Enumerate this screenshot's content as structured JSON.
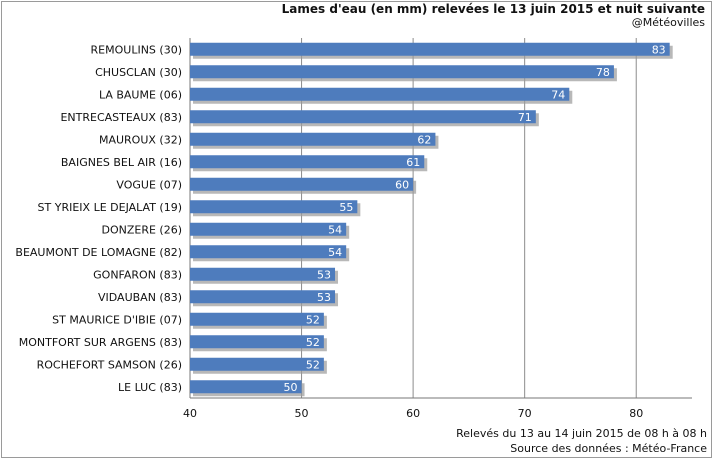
{
  "title": "Lames d'eau (en mm) relevées le 13 juin 2015 et nuit suivante",
  "subtitle": "@Météovilles",
  "footer": {
    "line1": "Relevés du 13 au 14 juin 2015 de 08 h à 08 h",
    "line2": "Source des données : Météo-France"
  },
  "colors": {
    "bar": "#4e7cbd",
    "bar_shadow": "#9a9a9a",
    "grid": "#8c8c8c"
  },
  "chart_data": {
    "type": "bar",
    "orientation": "horizontal",
    "title": "Lames d'eau (en mm) relevées le 13 juin 2015 et nuit suivante",
    "xlabel": "",
    "ylabel": "",
    "xlim": [
      40,
      85
    ],
    "xticks": [
      40,
      50,
      60,
      70,
      80
    ],
    "grid": true,
    "categories": [
      "REMOULINS (30)",
      "CHUSCLAN (30)",
      "LA BAUME (06)",
      "ENTRECASTEAUX (83)",
      "MAUROUX (32)",
      "BAIGNES BEL AIR (16)",
      "VOGUE (07)",
      "ST YRIEIX LE DEJALAT (19)",
      "DONZERE (26)",
      "BEAUMONT DE LOMAGNE (82)",
      "GONFARON (83)",
      "VIDAUBAN (83)",
      "ST MAURICE D'IBIE (07)",
      "MONTFORT SUR ARGENS (83)",
      "ROCHEFORT SAMSON (26)",
      "LE LUC (83)"
    ],
    "values": [
      83,
      78,
      74,
      71,
      62,
      61,
      60,
      55,
      54,
      54,
      53,
      53,
      52,
      52,
      52,
      50
    ]
  }
}
